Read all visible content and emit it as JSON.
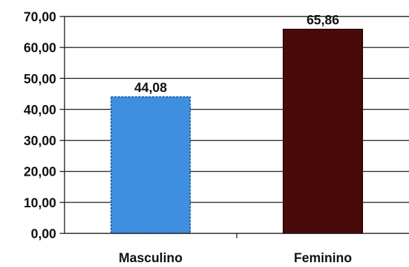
{
  "chart_data": {
    "type": "bar",
    "title": "",
    "xlabel": "",
    "ylabel": "",
    "categories": [
      "Masculino",
      "Feminino"
    ],
    "values": [
      44.08,
      65.86
    ],
    "value_labels": [
      "44,08",
      "65,86"
    ],
    "ylim": [
      0,
      70
    ],
    "y_ticks": [
      0,
      10,
      20,
      30,
      40,
      50,
      60,
      70
    ],
    "y_tick_labels": [
      "0,00",
      "10,00",
      "20,00",
      "30,00",
      "40,00",
      "50,00",
      "60,00",
      "70,00"
    ],
    "grid": true,
    "legend": "none",
    "bar_colors": [
      "#3f8fe0",
      "#4a0a0a"
    ],
    "bar_edge_colors": [
      "#1d4f96",
      "#220000"
    ]
  }
}
